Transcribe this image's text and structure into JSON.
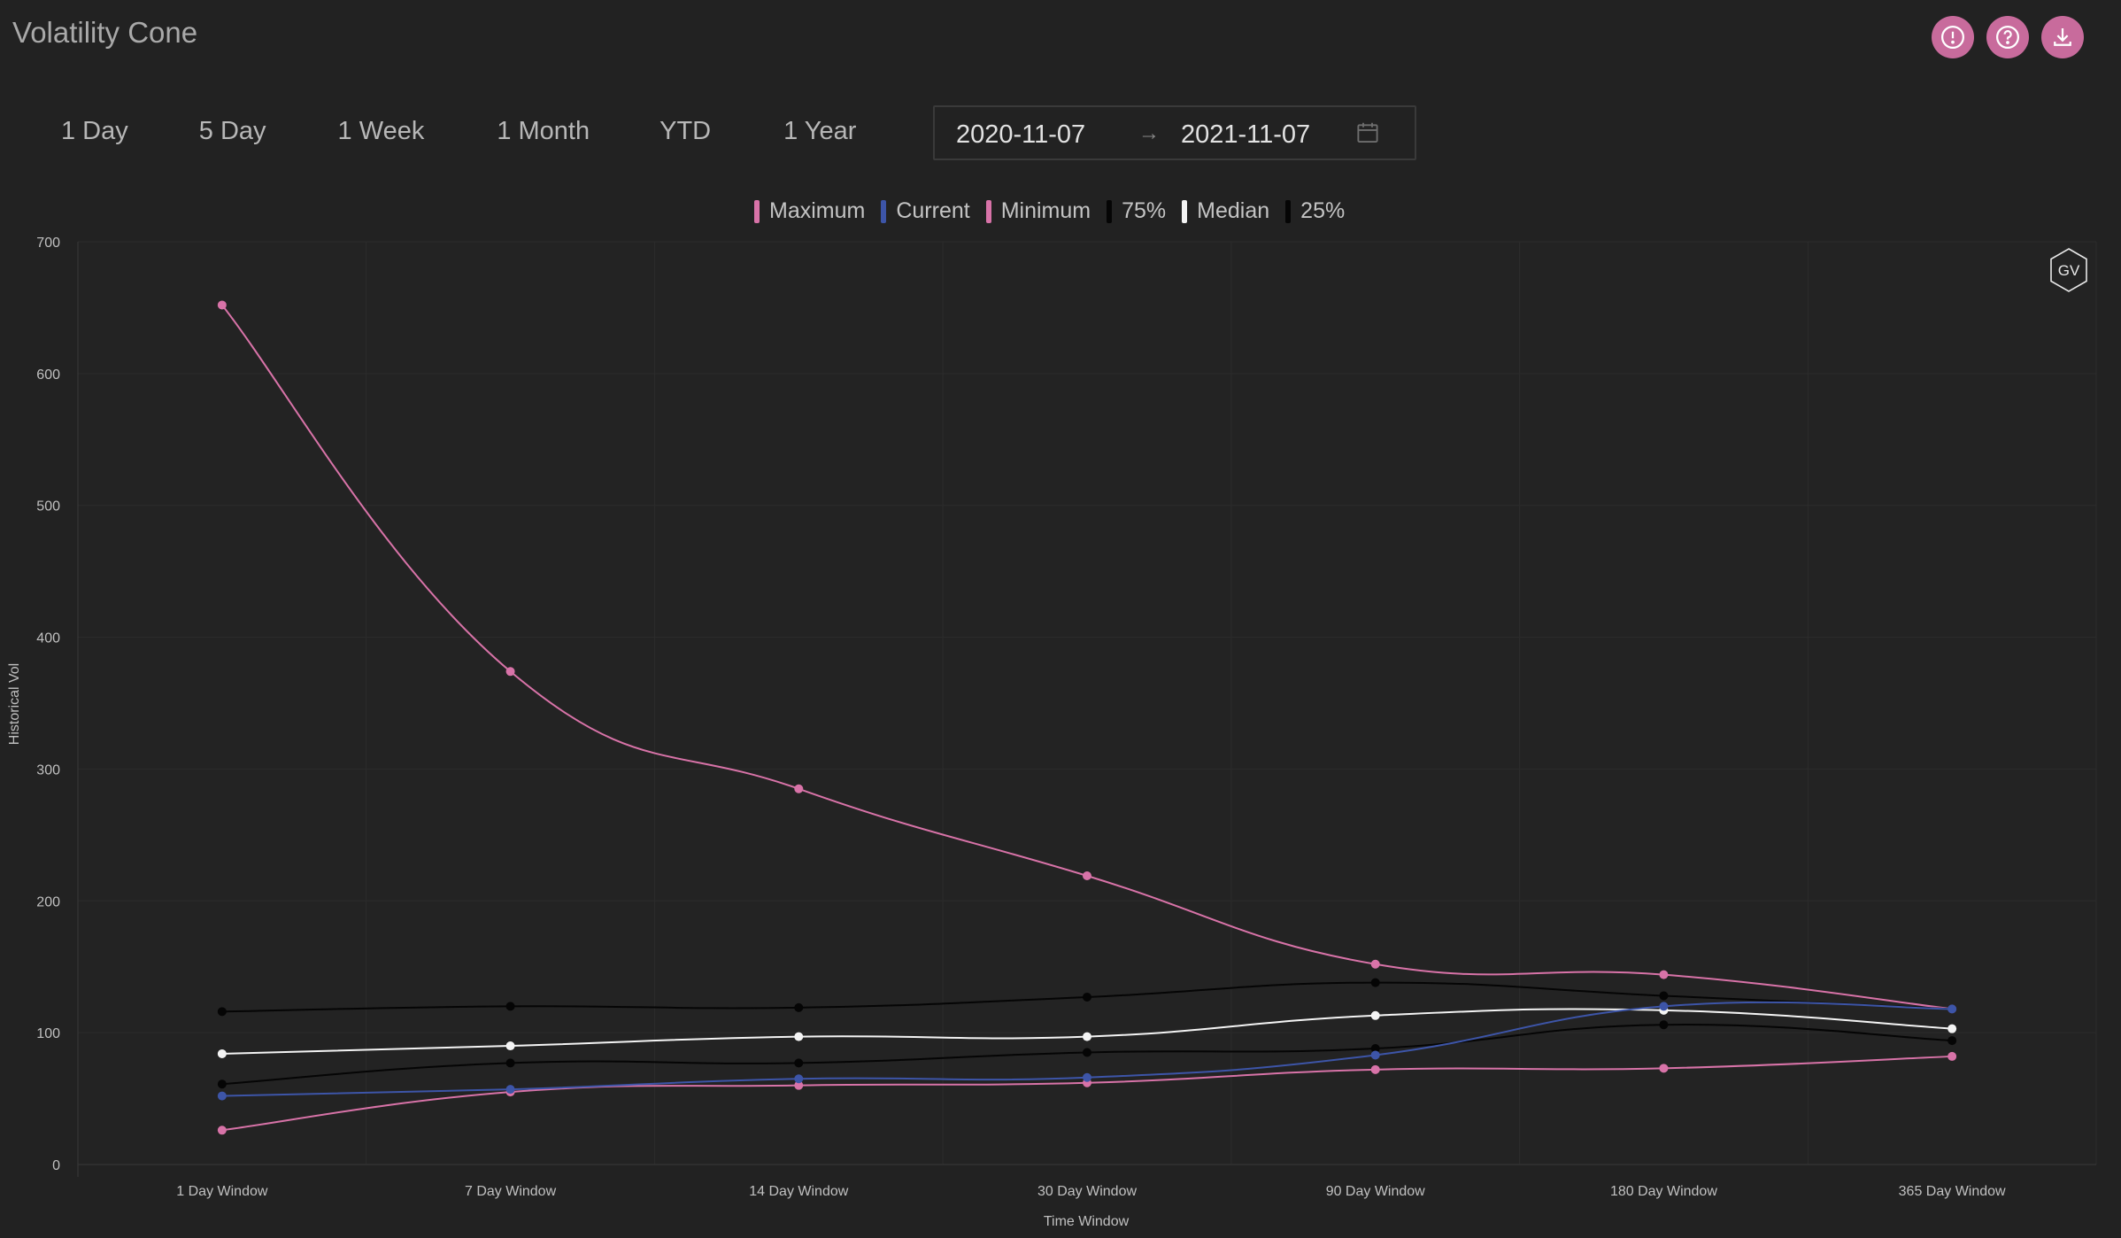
{
  "header": {
    "title": "Volatility Cone",
    "actions": [
      {
        "name": "info-button",
        "icon": "alert-circle-icon"
      },
      {
        "name": "help-button",
        "icon": "question-circle-icon"
      },
      {
        "name": "download-button",
        "icon": "download-icon"
      }
    ],
    "accent_color": "#c86b9c"
  },
  "range_buttons": [
    "1 Day",
    "5 Day",
    "1 Week",
    "1 Month",
    "YTD",
    "1 Year"
  ],
  "date_range": {
    "start": "2020-11-07",
    "end": "2021-11-07",
    "separator": "→"
  },
  "badge": {
    "text": "GV"
  },
  "chart_data": {
    "type": "line",
    "title": "",
    "xlabel": "Time Window",
    "ylabel": "Historical Vol",
    "ylim": [
      0,
      700
    ],
    "yticks": [
      0,
      100,
      200,
      300,
      400,
      500,
      600,
      700
    ],
    "grid": true,
    "legend_position": "top-center",
    "categories": [
      "1 Day Window",
      "7 Day Window",
      "14 Day Window",
      "30 Day Window",
      "90 Day Window",
      "180 Day Window",
      "365 Day Window"
    ],
    "series": [
      {
        "name": "Maximum",
        "color": "#d873a8",
        "values": [
          652,
          374,
          285,
          219,
          152,
          144,
          118
        ]
      },
      {
        "name": "Current",
        "color": "#3d55a8",
        "values": [
          52,
          57,
          65,
          66,
          83,
          120,
          118
        ]
      },
      {
        "name": "Minimum",
        "color": "#d873a8",
        "values": [
          26,
          55,
          60,
          62,
          72,
          73,
          82
        ]
      },
      {
        "name": "75%",
        "color": "#050505",
        "values": [
          116,
          120,
          119,
          127,
          138,
          128,
          118
        ]
      },
      {
        "name": "Median",
        "color": "#f4f4f4",
        "values": [
          84,
          90,
          97,
          97,
          113,
          117,
          103
        ]
      },
      {
        "name": "25%",
        "color": "#050505",
        "values": [
          61,
          77,
          77,
          85,
          88,
          106,
          94
        ]
      }
    ]
  }
}
